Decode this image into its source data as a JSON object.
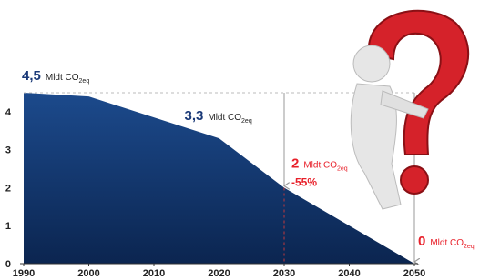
{
  "chart_data": {
    "type": "area",
    "x": [
      1990,
      2000,
      2020,
      2030,
      2050
    ],
    "values": [
      4.5,
      4.4,
      3.3,
      2,
      0
    ],
    "value_labels": [
      "4,5",
      null,
      "3,3",
      "2",
      "0"
    ],
    "label_colors": [
      "#1b3a78",
      null,
      "#1b3a78",
      "#e8202a",
      "#e8202a"
    ],
    "unit": "Mldt CO",
    "unit_sub": "2eq",
    "annotations": [
      {
        "x": 2030,
        "text": "-55%",
        "color": "#e8202a"
      }
    ],
    "color": "#0d2d5e",
    "xlim": [
      1990,
      2050
    ],
    "xticks": [
      1990,
      2000,
      2010,
      2020,
      2030,
      2040,
      2050
    ],
    "ylim": [
      0,
      4.5
    ],
    "yticks": [
      0,
      1,
      2,
      3,
      4
    ]
  }
}
